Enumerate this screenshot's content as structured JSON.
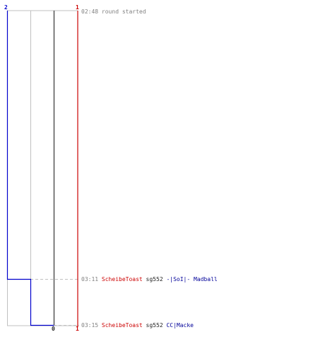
{
  "colors": {
    "team_blue": "#0000cc",
    "team_red": "#cc0000",
    "grid": "#c0c0c0",
    "marker": "#555555",
    "text_gray": "#808080"
  },
  "scores": {
    "blue_top": "2",
    "red_top": "1",
    "marker_bottom": "0",
    "red_bottom": "1"
  },
  "events": [
    {
      "time": "02:48",
      "text": "round started"
    },
    {
      "time": "03:11",
      "killer": "ScheibeToast",
      "weapon": "sg552",
      "victim": "-|SoI|- Madball"
    },
    {
      "time": "03:15",
      "killer": "ScheibeToast",
      "weapon": "sg552",
      "victim": "CC|Macke"
    }
  ]
}
